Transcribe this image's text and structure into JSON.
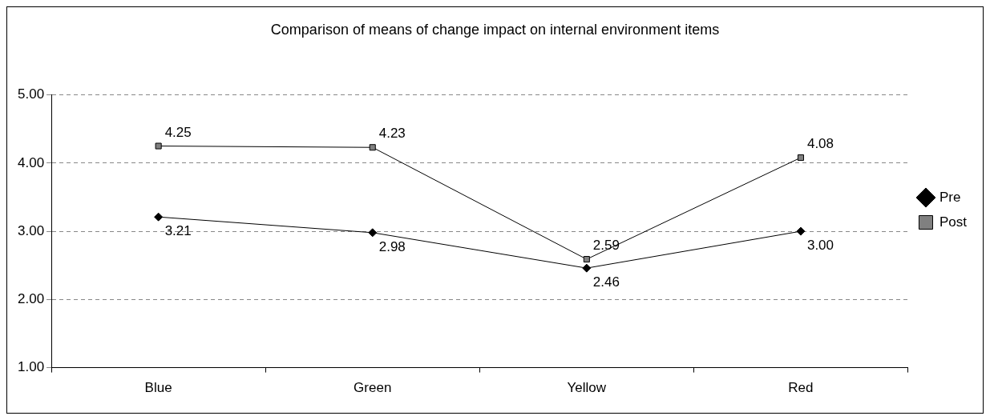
{
  "chart_data": {
    "type": "line",
    "title": "Comparison of means of change impact on internal environment items",
    "categories": [
      "Blue",
      "Green",
      "Yellow",
      "Red"
    ],
    "series": [
      {
        "name": "Pre",
        "color": "#000000",
        "marker": "diamond",
        "values": [
          3.21,
          2.98,
          2.46,
          3.0
        ],
        "value_labels": [
          "3.21",
          "2.98",
          "2.46",
          "3.00"
        ]
      },
      {
        "name": "Post",
        "color": "#808080",
        "marker": "square",
        "values": [
          4.25,
          4.23,
          2.59,
          4.08
        ],
        "value_labels": [
          "4.25",
          "4.23",
          "2.59",
          "4.08"
        ]
      }
    ],
    "ylim": [
      1,
      5
    ],
    "yticks": [
      {
        "value": 1,
        "label": "1.00"
      },
      {
        "value": 2,
        "label": "2.00"
      },
      {
        "value": 3,
        "label": "3.00"
      },
      {
        "value": 4,
        "label": "4.00"
      },
      {
        "value": 5,
        "label": "5.00"
      }
    ],
    "grid": "y",
    "legend": "right",
    "line_style": "solid"
  }
}
